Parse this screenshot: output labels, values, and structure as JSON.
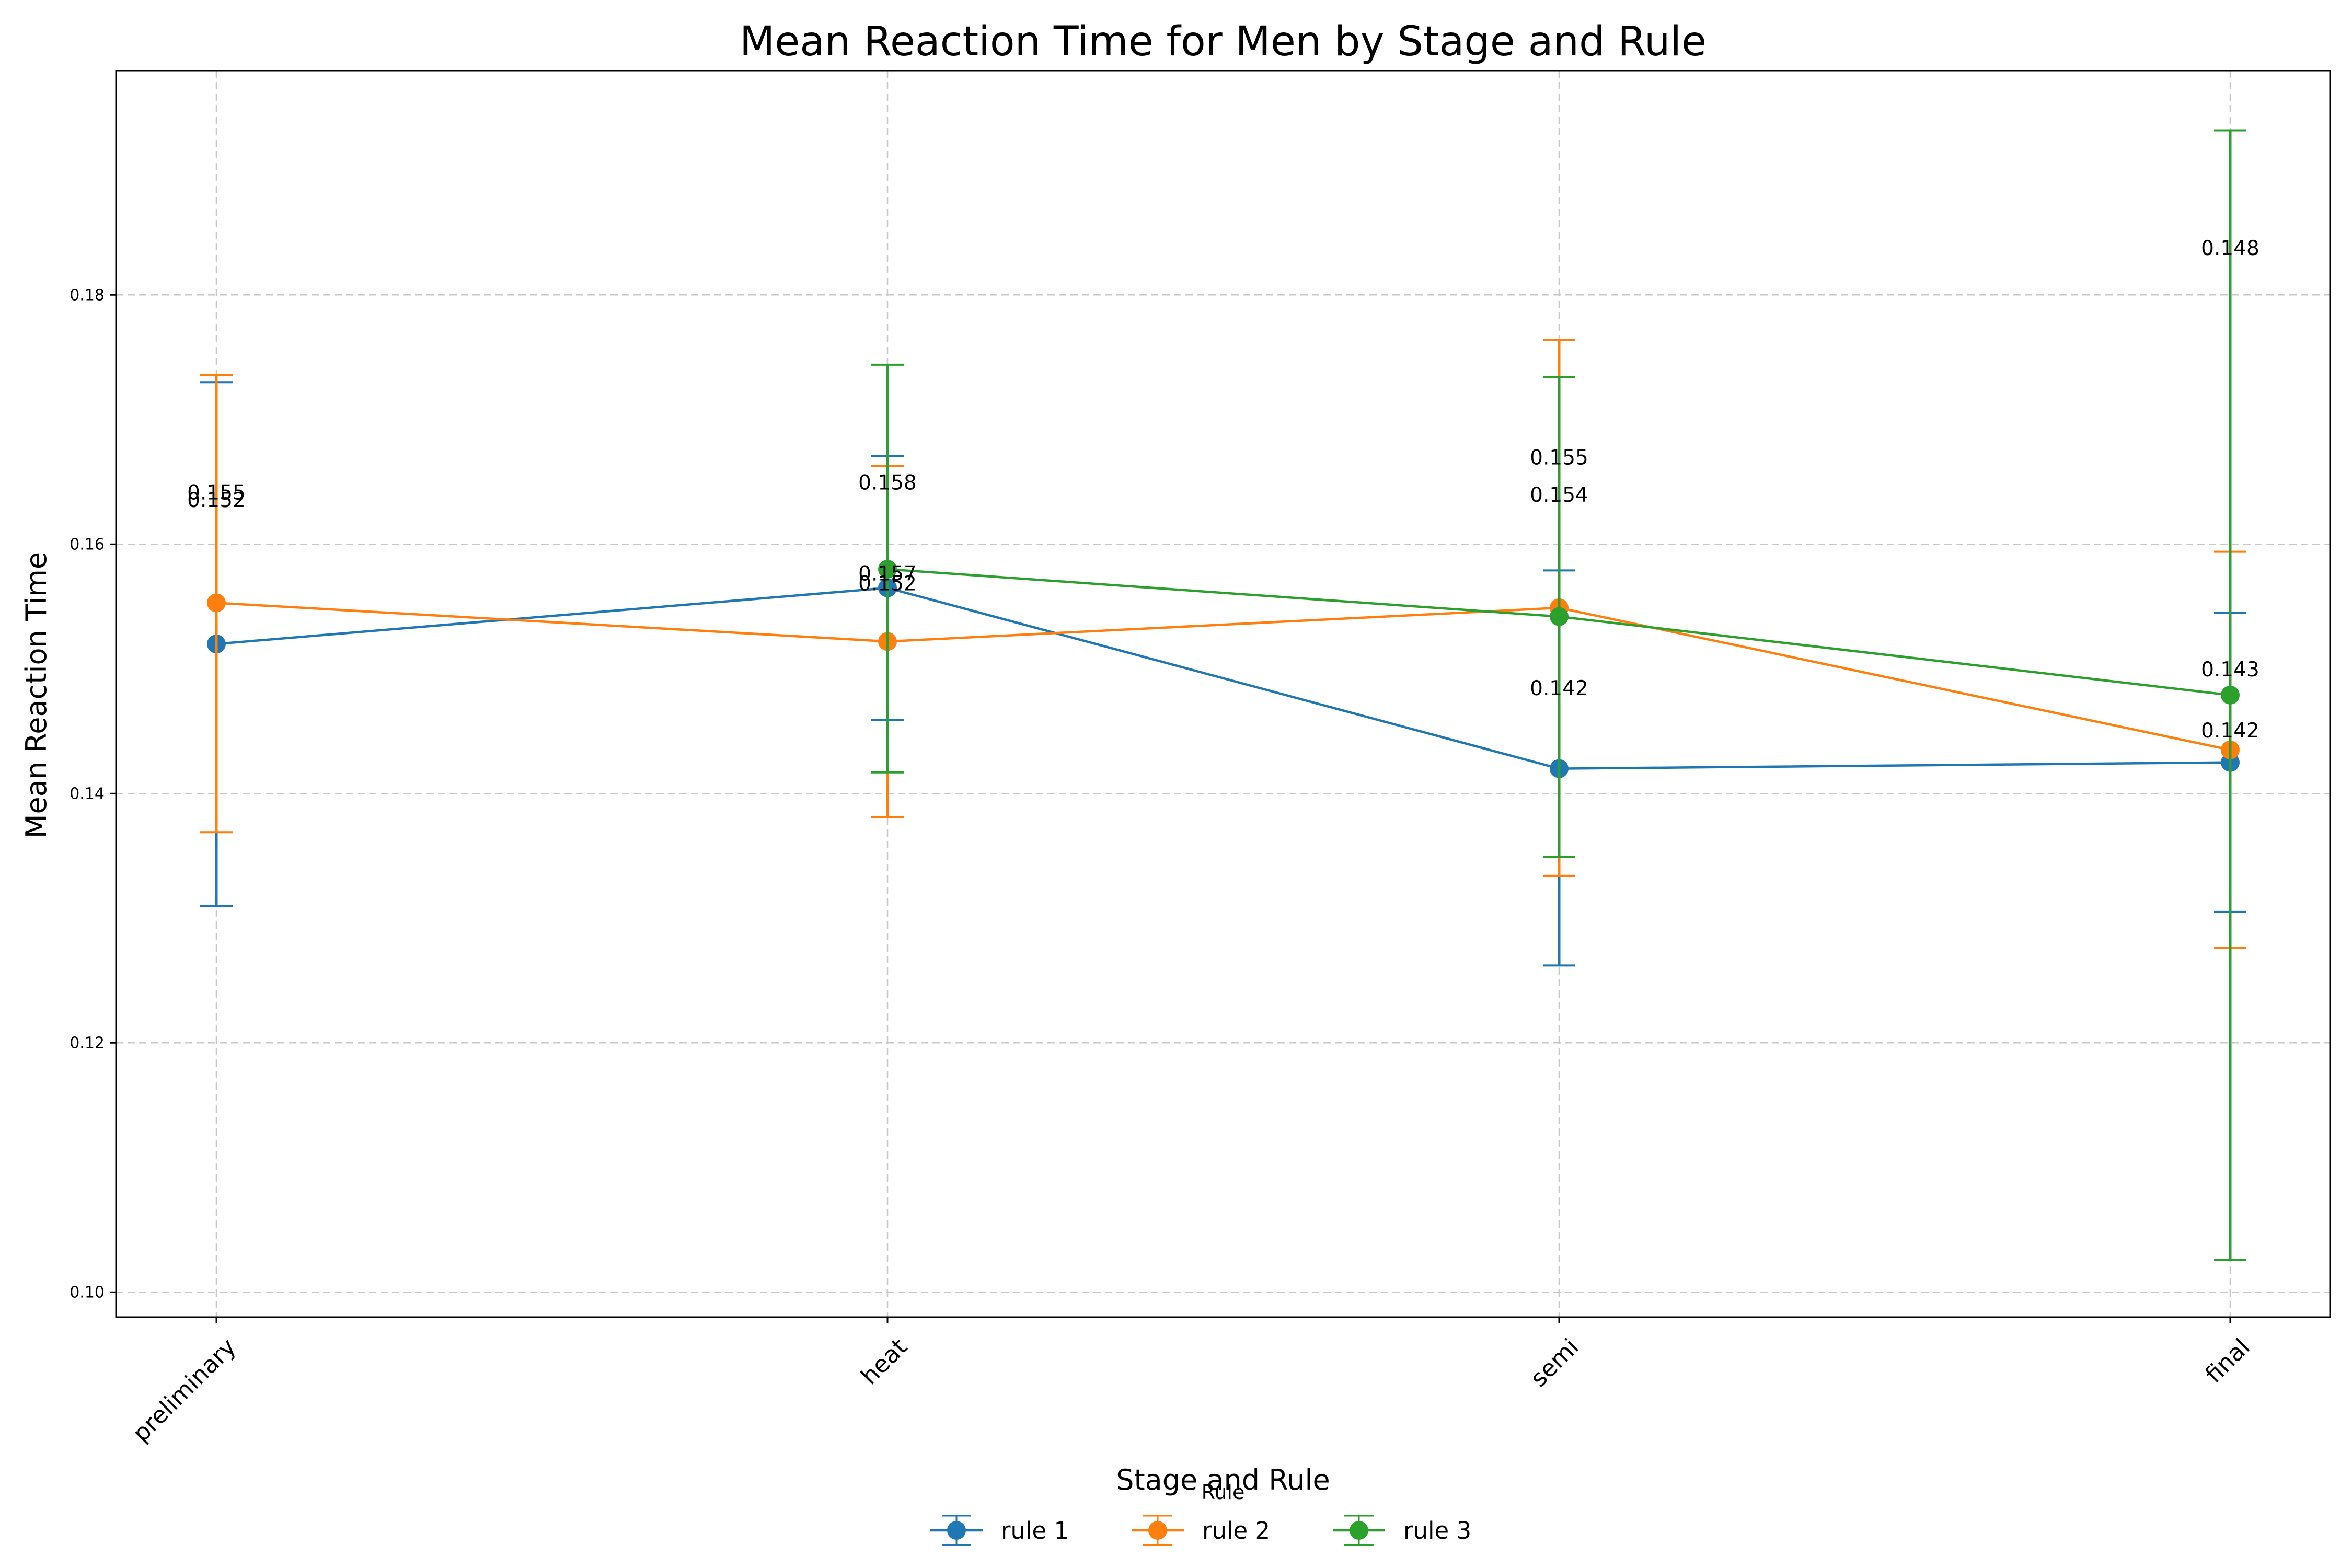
{
  "chart_data": {
    "type": "line",
    "title": "Mean Reaction Time for Men by Stage and Rule",
    "xlabel": "Stage and Rule",
    "ylabel": "Mean Reaction Time",
    "categories": [
      "preliminary",
      "heat",
      "semi",
      "final"
    ],
    "ylim": [
      0.098,
      0.198
    ],
    "yticks": [
      0.1,
      0.12,
      0.14,
      0.16,
      0.18
    ],
    "ytick_labels": [
      "0.10",
      "0.12",
      "0.14",
      "0.16",
      "0.18"
    ],
    "grid": true,
    "legend": {
      "title": "Rule",
      "placement": "bottom-center"
    },
    "series": [
      {
        "name": "rule 1",
        "color": "#1f77b4",
        "values": [
          0.152,
          0.1565,
          0.142,
          0.1425
        ],
        "error_low": [
          0.131,
          0.1459,
          0.1262,
          0.1305
        ],
        "error_high": [
          0.173,
          0.1671,
          0.1579,
          0.1545
        ],
        "labels": [
          "0.152",
          "0.157",
          "0.142",
          "0.142"
        ]
      },
      {
        "name": "rule 2",
        "color": "#ff7f0e",
        "values": [
          0.1553,
          0.1522,
          0.1549,
          0.1435
        ],
        "error_low": [
          0.1369,
          0.1381,
          0.1334,
          0.1276
        ],
        "error_high": [
          0.1736,
          0.1663,
          0.1764,
          0.1594
        ],
        "labels": [
          "0.155",
          "0.152",
          "0.155",
          "0.143"
        ]
      },
      {
        "name": "rule 3",
        "color": "#2ca02c",
        "values": [
          null,
          0.158,
          0.1542,
          0.1479
        ],
        "error_low": [
          null,
          0.1417,
          0.1349,
          0.1026
        ],
        "error_high": [
          null,
          0.1744,
          0.1734,
          0.1932
        ],
        "labels": [
          null,
          "0.158",
          "0.154",
          "0.148"
        ]
      }
    ]
  }
}
